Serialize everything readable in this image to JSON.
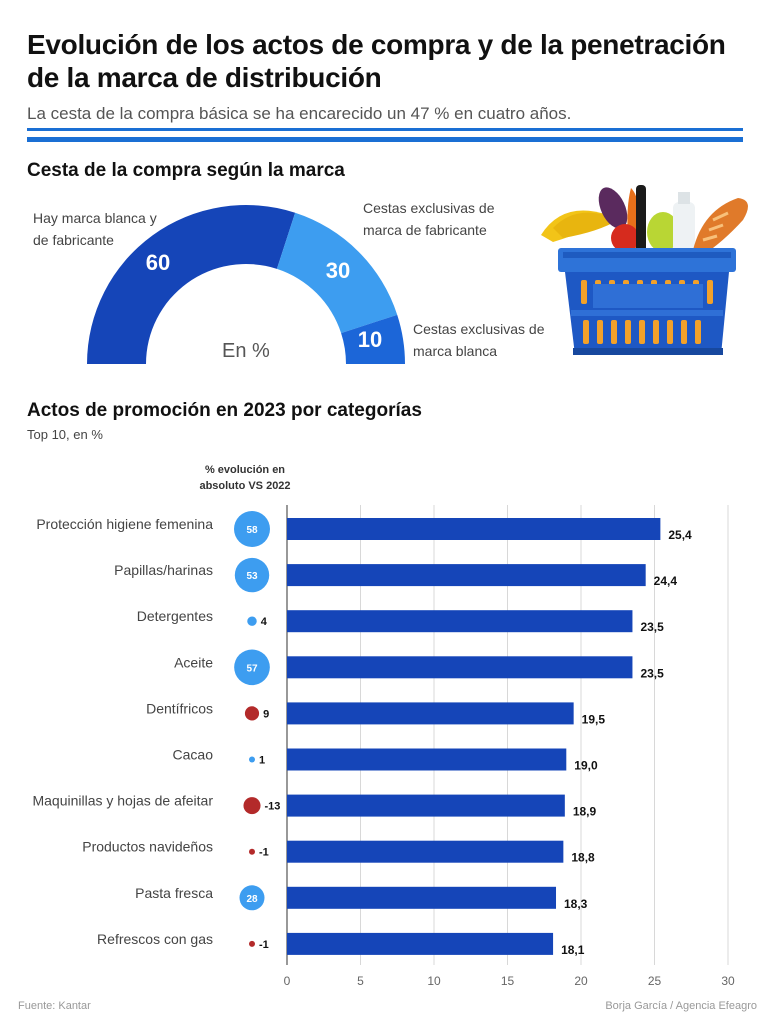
{
  "header": {
    "title": "Evolución de los actos de compra y de la penetración de la marca de distribución",
    "subtitle": "La cesta de la compra básica se ha encarecido un 47 % en cuatro años."
  },
  "gauge_section": {
    "heading": "Cesta de la compra según la marca",
    "unit": "En %",
    "labels": {
      "both": "Hay marca blanca y de fabricante",
      "manufacturer": "Cestas exclusivas de marca de fabricante",
      "private": "Cestas exclusivas de marca blanca"
    }
  },
  "bar_section": {
    "heading": "Actos de promoción en 2023 por categorías",
    "subheading": "Top 10, en %",
    "evolution_header": "% evolución en absoluto VS 2022"
  },
  "footer": {
    "source": "Fuente: Kantar",
    "credit": "Borja García / Agencia Efeagro"
  },
  "colors": {
    "dark_blue": "#1545b8",
    "light_blue": "#3d9df0",
    "mid_blue": "#1c66d8",
    "red": "#b32a2a",
    "rule_blue": "#1a6fd4"
  },
  "icons": [
    "shopping-basket-icon"
  ],
  "chart_data": [
    {
      "type": "pie",
      "style": "half-donut",
      "title": "Cesta de la compra según la marca",
      "slices": [
        {
          "label": "Hay marca blanca y de fabricante",
          "value": 60,
          "color": "#1545b8"
        },
        {
          "label": "Cestas exclusivas de marca de fabricante",
          "value": 30,
          "color": "#3d9df0"
        },
        {
          "label": "Cestas exclusivas de marca blanca",
          "value": 10,
          "color": "#1c66d8"
        }
      ]
    },
    {
      "type": "bar",
      "orientation": "horizontal",
      "title": "Actos de promoción en 2023 por categorías",
      "subtitle": "Top 10, en %",
      "categories": [
        "Protección higiene femenina",
        "Papillas/harinas",
        "Detergentes",
        "Aceite",
        "Dentífricos",
        "Cacao",
        "Maquinillas y hojas de afeitar",
        "Productos navideños",
        "Pasta fresca",
        "Refrescos con gas"
      ],
      "values": [
        25.4,
        24.4,
        23.5,
        23.5,
        19.5,
        19.0,
        18.9,
        18.8,
        18.3,
        18.1
      ],
      "value_labels": [
        "25,4",
        "24,4",
        "23,5",
        "23,5",
        "19,5",
        "19,0",
        "18,9",
        "18,8",
        "18,3",
        "18,1"
      ],
      "xlim": [
        0,
        30
      ],
      "xticks": [
        0,
        5,
        10,
        15,
        20,
        25,
        30
      ],
      "grid": true,
      "evolution_header": "% evolución en absoluto VS 2022",
      "evolution": [
        58,
        53,
        4,
        57,
        9,
        1,
        -13,
        -1,
        28,
        -1
      ],
      "evolution_labels": [
        "58",
        "53",
        "4",
        "57",
        "9",
        "1",
        "-13",
        "-1",
        "28",
        "-1"
      ],
      "evolution_colors": [
        "#3d9df0",
        "#3d9df0",
        "#3d9df0",
        "#3d9df0",
        "#b32a2a",
        "#3d9df0",
        "#b32a2a",
        "#b32a2a",
        "#3d9df0",
        "#b32a2a"
      ]
    }
  ]
}
